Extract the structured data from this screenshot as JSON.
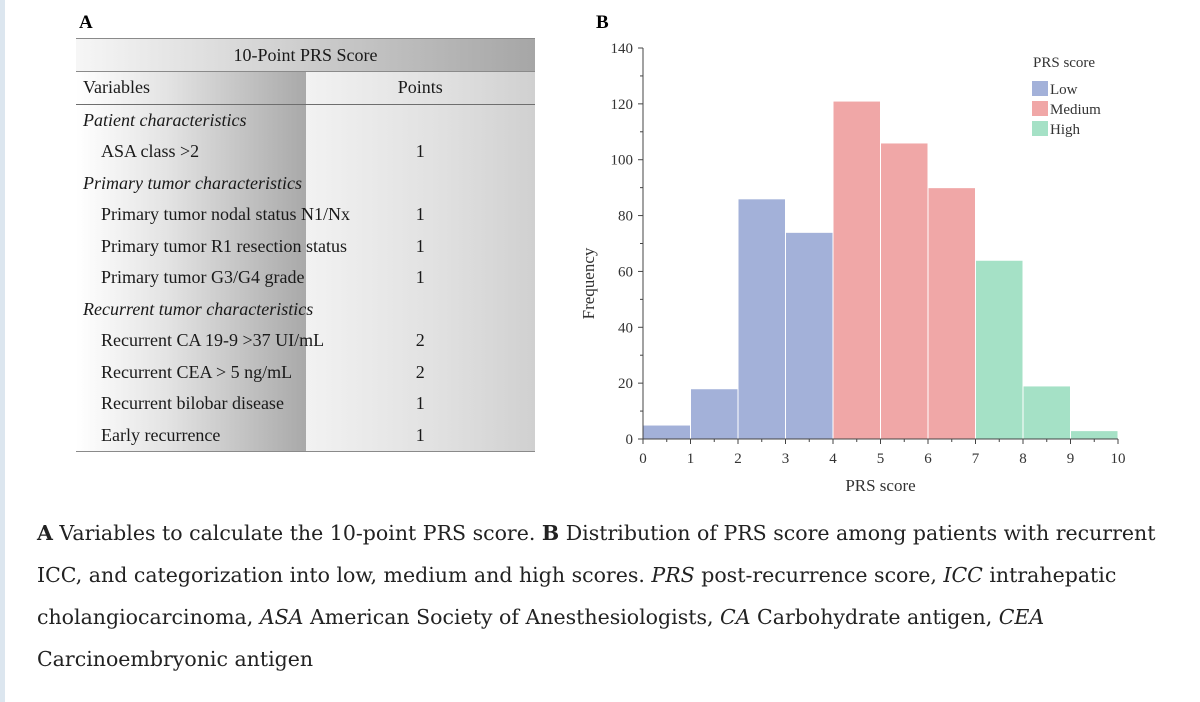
{
  "panel_a": {
    "label": "A",
    "table": {
      "title": "10-Point PRS Score",
      "header": {
        "variables": "Variables",
        "points": "Points"
      },
      "rows": [
        {
          "type": "section",
          "label": "Patient characteristics",
          "points": ""
        },
        {
          "type": "item",
          "label": "ASA class >2",
          "points": "1"
        },
        {
          "type": "section",
          "label": "Primary tumor characteristics",
          "points": ""
        },
        {
          "type": "item",
          "label": "Primary tumor nodal status N1/Nx",
          "points": "1"
        },
        {
          "type": "item",
          "label": "Primary tumor R1 resection status",
          "points": "1"
        },
        {
          "type": "item",
          "label": "Primary tumor G3/G4 grade",
          "points": "1"
        },
        {
          "type": "section",
          "label": "Recurrent tumor characteristics",
          "points": ""
        },
        {
          "type": "item",
          "label": "Recurrent CA 19-9 >37 UI/mL",
          "points": "2"
        },
        {
          "type": "item",
          "label": "Recurrent CEA > 5 ng/mL",
          "points": "2"
        },
        {
          "type": "item",
          "label": "Recurrent bilobar disease",
          "points": "1"
        },
        {
          "type": "item",
          "label": "Early recurrence",
          "points": "1"
        }
      ]
    }
  },
  "panel_b": {
    "label": "B"
  },
  "chart_data": {
    "type": "bar",
    "title": "",
    "xlabel": "PRS score",
    "ylabel": "Frequency",
    "xlim": [
      0,
      10
    ],
    "ylim": [
      0,
      140
    ],
    "x_ticks": [
      "0",
      "1",
      "2",
      "3",
      "4",
      "5",
      "6",
      "7",
      "8",
      "9",
      "10"
    ],
    "y_ticks": [
      "0",
      "20",
      "40",
      "60",
      "80",
      "100",
      "120",
      "140"
    ],
    "legend_title": "PRS score",
    "legend_position": "top-right",
    "categories": [
      "Low",
      "Medium",
      "High"
    ],
    "colors": {
      "Low": "#a3b1d9",
      "Medium": "#f0a7a7",
      "High": "#a5e1c6"
    },
    "bins": [
      {
        "x0": 0,
        "x1": 1,
        "value": 5,
        "category": "Low"
      },
      {
        "x0": 1,
        "x1": 2,
        "value": 18,
        "category": "Low"
      },
      {
        "x0": 2,
        "x1": 3,
        "value": 86,
        "category": "Low"
      },
      {
        "x0": 3,
        "x1": 4,
        "value": 74,
        "category": "Low"
      },
      {
        "x0": 4,
        "x1": 5,
        "value": 121,
        "category": "Medium"
      },
      {
        "x0": 5,
        "x1": 6,
        "value": 106,
        "category": "Medium"
      },
      {
        "x0": 6,
        "x1": 7,
        "value": 90,
        "category": "Medium"
      },
      {
        "x0": 7,
        "x1": 8,
        "value": 64,
        "category": "High"
      },
      {
        "x0": 8,
        "x1": 9,
        "value": 19,
        "category": "High"
      },
      {
        "x0": 9,
        "x1": 10,
        "value": 3,
        "category": "High"
      }
    ]
  },
  "caption": {
    "a_label": "A",
    "a_text": " Variables to calculate the 10-point PRS score. ",
    "b_label": "B",
    "b_text": " Distribution of PRS score among patients with recurrent ICC, and categorization into low, medium and high scores. ",
    "abbreviations": [
      {
        "term": "PRS",
        "definition": " post-recurrence score, "
      },
      {
        "term": "ICC",
        "definition": " intrahepatic cholangiocarcinoma, "
      },
      {
        "term": "ASA",
        "definition": " American Society of Anesthesiologists, "
      },
      {
        "term": "CA",
        "definition": " Carbohydrate antigen, "
      },
      {
        "term": "CEA",
        "definition": " Carcinoembryonic antigen"
      }
    ]
  }
}
